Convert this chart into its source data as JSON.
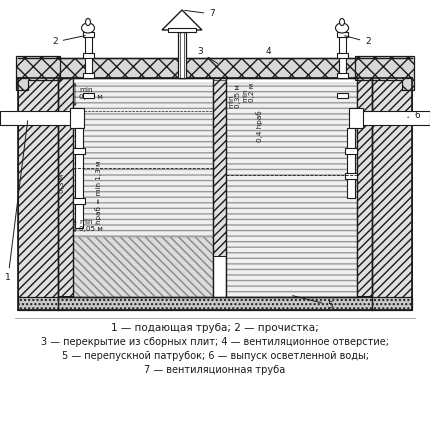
{
  "caption_lines": [
    "1 — подающая труба; 2 — прочистка;",
    "3 — перекрытие из сборных плит; 4 — вентиляционное отверстие;",
    "5 — перепускной патрубок; 6 — выпуск осветленной воды;",
    "7 — вентиляционная труба"
  ],
  "bg_color": "#ffffff"
}
